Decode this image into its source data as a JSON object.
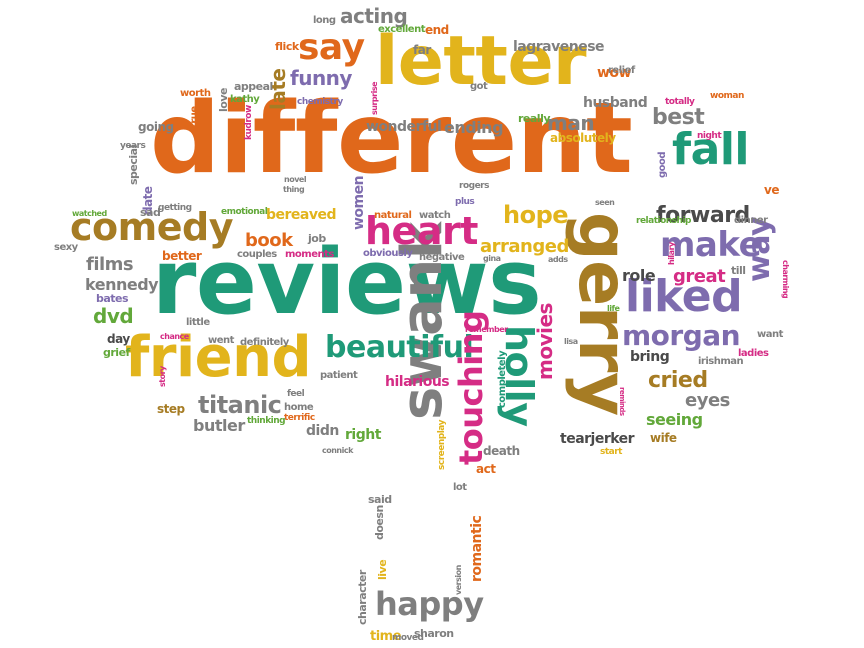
{
  "colors": {
    "orange": "#e0681b",
    "green": "#1f9a78",
    "yellow": "#e2b41c",
    "purple": "#7e6cae",
    "pink": "#d52c85",
    "brown": "#a67c24",
    "gray": "#7f7f7f",
    "lime": "#62a83a",
    "dark": "#4a4a4a"
  },
  "words": [
    {
      "text": "different",
      "color": "orange"
    },
    {
      "text": "reviews",
      "color": "green"
    },
    {
      "text": "letter",
      "color": "yellow"
    },
    {
      "text": "gerry",
      "color": "brown"
    },
    {
      "text": "friend",
      "color": "yellow"
    },
    {
      "text": "swank",
      "color": "gray"
    },
    {
      "text": "liked",
      "color": "purple"
    },
    {
      "text": "fall",
      "color": "green"
    },
    {
      "text": "comedy",
      "color": "brown"
    },
    {
      "text": "heart",
      "color": "pink"
    },
    {
      "text": "make",
      "color": "purple"
    },
    {
      "text": "holly",
      "color": "green"
    },
    {
      "text": "beautiful",
      "color": "green"
    },
    {
      "text": "touching",
      "color": "pink"
    },
    {
      "text": "say",
      "color": "orange"
    },
    {
      "text": "happy",
      "color": "gray"
    },
    {
      "text": "morgan",
      "color": "purple"
    },
    {
      "text": "forward",
      "color": "dark"
    },
    {
      "text": "cried",
      "color": "brown"
    },
    {
      "text": "hope",
      "color": "yellow"
    },
    {
      "text": "titanic",
      "color": "gray"
    },
    {
      "text": "way",
      "color": "purple"
    },
    {
      "text": "movies",
      "color": "pink"
    },
    {
      "text": "acting",
      "color": "gray"
    },
    {
      "text": "funny",
      "color": "purple"
    },
    {
      "text": "late",
      "color": "brown"
    },
    {
      "text": "best",
      "color": "gray"
    },
    {
      "text": "book",
      "color": "orange"
    },
    {
      "text": "films",
      "color": "gray"
    },
    {
      "text": "dvd",
      "color": "lime"
    },
    {
      "text": "kennedy",
      "color": "gray"
    },
    {
      "text": "arranged",
      "color": "yellow"
    },
    {
      "text": "man",
      "color": "gray"
    },
    {
      "text": "great",
      "color": "pink"
    },
    {
      "text": "role",
      "color": "dark"
    },
    {
      "text": "ending",
      "color": "gray"
    },
    {
      "text": "wonderful",
      "color": "gray"
    },
    {
      "text": "husband",
      "color": "gray"
    },
    {
      "text": "eyes",
      "color": "gray"
    },
    {
      "text": "seeing",
      "color": "lime"
    },
    {
      "text": "bring",
      "color": "dark"
    },
    {
      "text": "hilarious",
      "color": "pink"
    },
    {
      "text": "butler",
      "color": "gray"
    },
    {
      "text": "tearjerker",
      "color": "dark"
    },
    {
      "text": "right",
      "color": "lime"
    },
    {
      "text": "didn",
      "color": "gray"
    },
    {
      "text": "lagravenese",
      "color": "gray"
    },
    {
      "text": "romantic",
      "color": "orange"
    },
    {
      "text": "time",
      "color": "yellow"
    },
    {
      "text": "wow",
      "color": "orange"
    },
    {
      "text": "absolutely",
      "color": "yellow"
    },
    {
      "text": "women",
      "color": "purple"
    },
    {
      "text": "bereaved",
      "color": "yellow"
    },
    {
      "text": "really",
      "color": "lime"
    },
    {
      "text": "step",
      "color": "brown"
    },
    {
      "text": "good",
      "color": "purple"
    },
    {
      "text": "wife",
      "color": "brown"
    },
    {
      "text": "grief",
      "color": "lime"
    },
    {
      "text": "day",
      "color": "dark"
    },
    {
      "text": "character",
      "color": "gray"
    },
    {
      "text": "live",
      "color": "yellow"
    },
    {
      "text": "sharon",
      "color": "gray"
    },
    {
      "text": "moved",
      "color": "gray"
    },
    {
      "text": "screenplay",
      "color": "yellow"
    },
    {
      "text": "death",
      "color": "gray"
    },
    {
      "text": "act",
      "color": "orange"
    },
    {
      "text": "lot",
      "color": "gray"
    },
    {
      "text": "completely",
      "color": "green"
    },
    {
      "text": "said",
      "color": "gray"
    },
    {
      "text": "doesn",
      "color": "gray"
    },
    {
      "text": "version",
      "color": "gray"
    },
    {
      "text": "going",
      "color": "gray"
    },
    {
      "text": "relief",
      "color": "gray"
    },
    {
      "text": "end",
      "color": "orange"
    },
    {
      "text": "flick",
      "color": "orange"
    },
    {
      "text": "long",
      "color": "gray"
    },
    {
      "text": "excellent",
      "color": "lime"
    },
    {
      "text": "far",
      "color": "gray"
    },
    {
      "text": "worth",
      "color": "orange"
    },
    {
      "text": "appeal",
      "color": "gray"
    },
    {
      "text": "kathy",
      "color": "lime"
    },
    {
      "text": "love",
      "color": "gray"
    },
    {
      "text": "chemistry",
      "color": "purple"
    },
    {
      "text": "surprise",
      "color": "pink"
    },
    {
      "text": "got",
      "color": "gray"
    },
    {
      "text": "woman",
      "color": "orange"
    },
    {
      "text": "totally",
      "color": "pink"
    },
    {
      "text": "night",
      "color": "pink"
    },
    {
      "text": "true",
      "color": "orange"
    },
    {
      "text": "kudrow",
      "color": "pink"
    },
    {
      "text": "years",
      "color": "gray"
    },
    {
      "text": "special",
      "color": "gray"
    },
    {
      "text": "date",
      "color": "purple"
    },
    {
      "text": "watched",
      "color": "lime"
    },
    {
      "text": "sad",
      "color": "gray"
    },
    {
      "text": "getting",
      "color": "gray"
    },
    {
      "text": "emotional",
      "color": "lime"
    },
    {
      "text": "novel",
      "color": "gray"
    },
    {
      "text": "thing",
      "color": "gray"
    },
    {
      "text": "rogers",
      "color": "gray"
    },
    {
      "text": "plus",
      "color": "purple"
    },
    {
      "text": "natural",
      "color": "orange"
    },
    {
      "text": "watch",
      "color": "gray"
    },
    {
      "text": "seen",
      "color": "gray"
    },
    {
      "text": "relationship",
      "color": "lime"
    },
    {
      "text": "dinner",
      "color": "gray"
    },
    {
      "text": "ve",
      "color": "orange"
    },
    {
      "text": "sexy",
      "color": "gray"
    },
    {
      "text": "job",
      "color": "gray"
    },
    {
      "text": "couples",
      "color": "gray"
    },
    {
      "text": "moments",
      "color": "pink"
    },
    {
      "text": "better",
      "color": "orange"
    },
    {
      "text": "obviously",
      "color": "purple"
    },
    {
      "text": "negative",
      "color": "gray"
    },
    {
      "text": "gina",
      "color": "gray"
    },
    {
      "text": "adds",
      "color": "gray"
    },
    {
      "text": "hilary",
      "color": "pink"
    },
    {
      "text": "till",
      "color": "gray"
    },
    {
      "text": "charming",
      "color": "pink"
    },
    {
      "text": "bates",
      "color": "purple"
    },
    {
      "text": "little",
      "color": "gray"
    },
    {
      "text": "remember",
      "color": "pink"
    },
    {
      "text": "life",
      "color": "lime"
    },
    {
      "text": "want",
      "color": "gray"
    },
    {
      "text": "ladies",
      "color": "pink"
    },
    {
      "text": "chance",
      "color": "pink"
    },
    {
      "text": "went",
      "color": "gray"
    },
    {
      "text": "definitely",
      "color": "gray"
    },
    {
      "text": "lisa",
      "color": "gray"
    },
    {
      "text": "irishman",
      "color": "gray"
    },
    {
      "text": "patient",
      "color": "gray"
    },
    {
      "text": "story",
      "color": "pink"
    },
    {
      "text": "home",
      "color": "gray"
    },
    {
      "text": "terrific",
      "color": "orange"
    },
    {
      "text": "thinking",
      "color": "lime"
    },
    {
      "text": "feel",
      "color": "gray"
    },
    {
      "text": "connick",
      "color": "gray"
    },
    {
      "text": "start",
      "color": "yellow"
    },
    {
      "text": "reminds",
      "color": "pink"
    }
  ]
}
